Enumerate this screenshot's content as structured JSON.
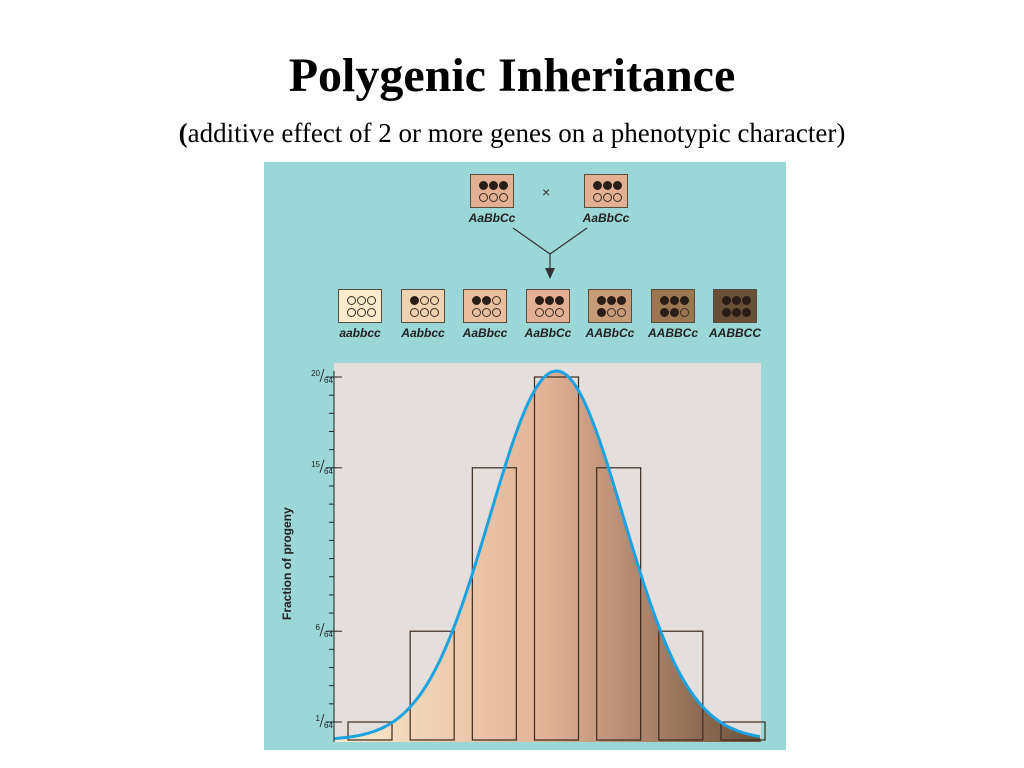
{
  "title": "Polygenic Inheritance",
  "subtitle": {
    "open_paren": "(",
    "text": "additive effect of 2 or more genes on a phenotypic character)"
  },
  "cross": {
    "symbol": "×",
    "parents": [
      {
        "genotype": "AaBbCc",
        "dark_alleles": 3,
        "color": "#e3b095"
      },
      {
        "genotype": "AaBbCc",
        "dark_alleles": 3,
        "color": "#e3b095"
      }
    ]
  },
  "offspring": [
    {
      "genotype": "aabbcc",
      "dark_alleles": 0,
      "color": "#fbeccd"
    },
    {
      "genotype": "Aabbcc",
      "dark_alleles": 1,
      "color": "#f2d3b1"
    },
    {
      "genotype": "AaBbcc",
      "dark_alleles": 2,
      "color": "#e9bfa0"
    },
    {
      "genotype": "AaBbCc",
      "dark_alleles": 3,
      "color": "#e3b095"
    },
    {
      "genotype": "AABbCc",
      "dark_alleles": 4,
      "color": "#c79a78"
    },
    {
      "genotype": "AABBCc",
      "dark_alleles": 5,
      "color": "#9a7653"
    },
    {
      "genotype": "AABBCC",
      "dark_alleles": 6,
      "color": "#6a4f37"
    }
  ],
  "chart_data": {
    "type": "bar",
    "ylabel": "Fraction of progeny",
    "categories": [
      "aabbcc",
      "Aabbcc",
      "AaBbcc",
      "AaBbCc",
      "AABbCc",
      "AABBCc",
      "AABBCC"
    ],
    "values": [
      1,
      6,
      15,
      20,
      15,
      6,
      1
    ],
    "denominator": 64,
    "ylim": [
      0,
      20
    ],
    "y_tick_labels": [
      {
        "value": 20,
        "num": "20",
        "den": "64"
      },
      {
        "value": 15,
        "num": "15",
        "den": "64"
      },
      {
        "value": 6,
        "num": "6",
        "den": "64"
      },
      {
        "value": 1,
        "num": "1",
        "den": "64"
      }
    ],
    "curve_color": "#1aa3e0",
    "background": "#e4dfdc",
    "gradient": [
      "#fbeccd",
      "#e2b196",
      "#6a4f37"
    ]
  }
}
